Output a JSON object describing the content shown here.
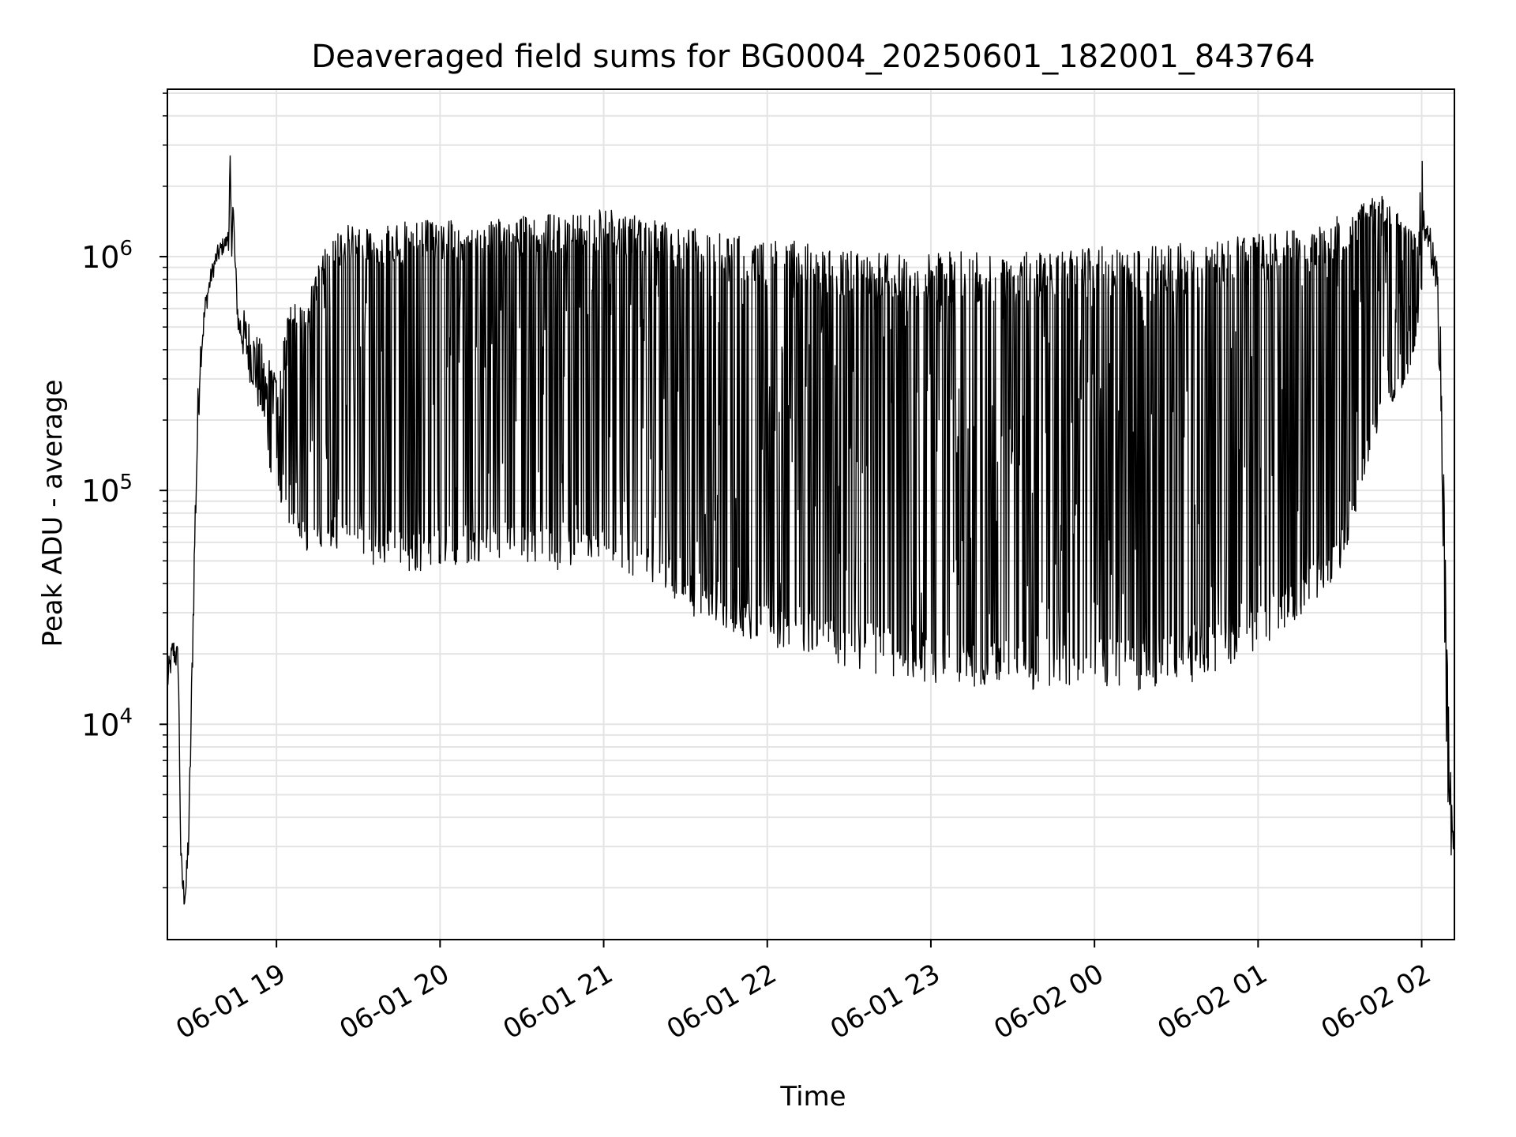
{
  "chart_data": {
    "type": "line",
    "title": "Deaveraged field sums for BG0004_20250601_182001_843764",
    "xlabel": "Time",
    "ylabel": "Peak ADU - average",
    "x_range": [
      "2025-06-01 18:20",
      "2025-06-02 02:12"
    ],
    "xticks": [
      {
        "t": "2025-06-01 19:00",
        "label": "06-01 19"
      },
      {
        "t": "2025-06-01 20:00",
        "label": "06-01 20"
      },
      {
        "t": "2025-06-01 21:00",
        "label": "06-01 21"
      },
      {
        "t": "2025-06-01 22:00",
        "label": "06-01 22"
      },
      {
        "t": "2025-06-01 23:00",
        "label": "06-01 23"
      },
      {
        "t": "2025-06-02 00:00",
        "label": "06-02 00"
      },
      {
        "t": "2025-06-02 01:00",
        "label": "06-02 01"
      },
      {
        "t": "2025-06-02 02:00",
        "label": "06-02 02"
      }
    ],
    "yscale": "log",
    "ylim": [
      1200,
      5200000
    ],
    "yticks": [
      {
        "value": 10000,
        "base": "10",
        "exp": "4"
      },
      {
        "value": 100000,
        "base": "10",
        "exp": "5"
      },
      {
        "value": 1000000,
        "base": "10",
        "exp": "6"
      }
    ],
    "grid": true,
    "line_color": "#000000",
    "series": [
      {
        "t": [
          "2025-06-01 18:20",
          "2025-06-01 18:22",
          "2025-06-01 18:24",
          "2025-06-01 18:25",
          "2025-06-01 18:26",
          "2025-06-01 18:27",
          "2025-06-01 18:28",
          "2025-06-01 18:29",
          "2025-06-01 18:30",
          "2025-06-01 18:31",
          "2025-06-01 18:32",
          "2025-06-01 18:34",
          "2025-06-01 18:36",
          "2025-06-01 18:38",
          "2025-06-01 18:40",
          "2025-06-01 18:42",
          "2025-06-01 18:43",
          "2025-06-01 18:44",
          "2025-06-01 18:45",
          "2025-06-01 18:46",
          "2025-06-01 18:48",
          "2025-06-01 18:52",
          "2025-06-01 18:56",
          "2025-06-01 18:58",
          "2025-06-01 19:00",
          "2025-06-01 19:05",
          "2025-06-01 19:10",
          "2025-06-01 19:20",
          "2025-06-01 19:30",
          "2025-06-01 19:45",
          "2025-06-01 20:00",
          "2025-06-01 20:15",
          "2025-06-01 20:30",
          "2025-06-01 20:45",
          "2025-06-01 21:00",
          "2025-06-01 21:15",
          "2025-06-01 21:30",
          "2025-06-01 21:45",
          "2025-06-01 22:00",
          "2025-06-01 22:30",
          "2025-06-01 23:00",
          "2025-06-01 23:30",
          "2025-06-02 00:00",
          "2025-06-02 00:30",
          "2025-06-02 01:00",
          "2025-06-02 01:15",
          "2025-06-02 01:30",
          "2025-06-02 01:45",
          "2025-06-02 01:55",
          "2025-06-02 01:59",
          "2025-06-02 02:00",
          "2025-06-02 02:01",
          "2025-06-02 02:03",
          "2025-06-02 02:05",
          "2025-06-02 02:07",
          "2025-06-02 02:09",
          "2025-06-02 02:10",
          "2025-06-02 02:11",
          "2025-06-02 02:12"
        ],
        "low": [
          13000,
          18000,
          16000,
          2000,
          1600,
          1700,
          3000,
          12000,
          45000,
          120000,
          300000,
          550000,
          750000,
          900000,
          1000000,
          1100000,
          1000000,
          1000000,
          700000,
          450000,
          350000,
          250000,
          150000,
          110000,
          100000,
          70000,
          55000,
          55000,
          50000,
          45000,
          45000,
          50000,
          50000,
          45000,
          45000,
          40000,
          30000,
          25000,
          22000,
          17000,
          15000,
          14000,
          14000,
          14000,
          20000,
          28000,
          45000,
          200000,
          300000,
          500000,
          700000,
          1100000,
          1000000,
          600000,
          250000,
          8000,
          3000,
          2700,
          2500
        ],
        "high": [
          18000,
          24000,
          22000,
          3000,
          2200,
          2500,
          5000,
          20000,
          80000,
          250000,
          450000,
          700000,
          900000,
          1100000,
          1200000,
          1250000,
          3500000,
          2500000,
          1000000,
          600000,
          600000,
          500000,
          400000,
          350000,
          300000,
          650000,
          600000,
          1300000,
          1400000,
          1400000,
          1450000,
          1400000,
          1500000,
          1550000,
          1600000,
          1500000,
          1350000,
          1250000,
          1200000,
          1100000,
          1050000,
          1050000,
          1100000,
          1150000,
          1250000,
          1300000,
          1500000,
          1850000,
          1400000,
          1300000,
          3200000,
          1400000,
          1350000,
          1100000,
          700000,
          30000,
          10000,
          5000,
          4000
        ]
      }
    ]
  }
}
